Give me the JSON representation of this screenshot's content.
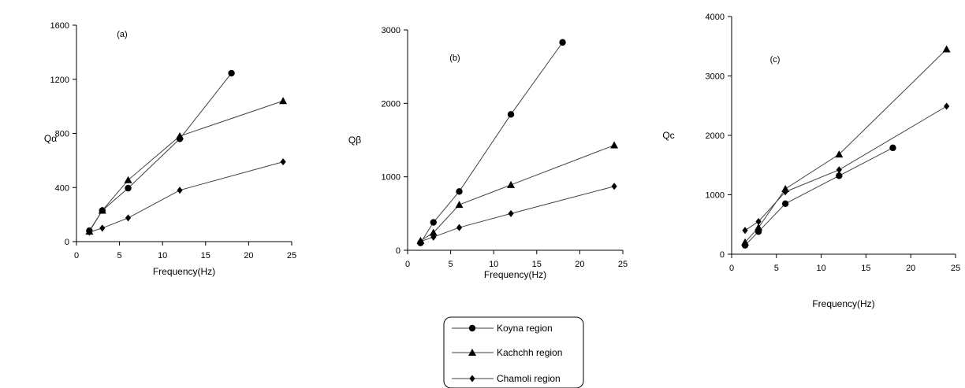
{
  "chart_data": [
    {
      "type": "line",
      "panel_label": "(a)",
      "xlabel": "Frequency(Hz)",
      "ylabel": "Qα",
      "xlim": [
        0,
        25
      ],
      "ylim": [
        0,
        1600
      ],
      "xticks": [
        0,
        5,
        10,
        15,
        20,
        25
      ],
      "yticks": [
        0,
        400,
        800,
        1200,
        1600
      ],
      "series": [
        {
          "name": "Koyna region",
          "marker": "circle",
          "x": [
            1.5,
            3,
            6,
            12,
            18
          ],
          "y": [
            80,
            230,
            395,
            760,
            1245
          ]
        },
        {
          "name": "Kachchh region",
          "marker": "triangle",
          "x": [
            1.5,
            3,
            6,
            12,
            24
          ],
          "y": [
            75,
            230,
            455,
            780,
            1040
          ]
        },
        {
          "name": "Chamoli region",
          "marker": "diamond",
          "x": [
            1.5,
            3,
            6,
            12,
            24
          ],
          "y": [
            70,
            100,
            175,
            380,
            590
          ]
        }
      ]
    },
    {
      "type": "line",
      "panel_label": "(b)",
      "xlabel": "Frequency(Hz)",
      "ylabel": "Qβ",
      "xlim": [
        0,
        25
      ],
      "ylim": [
        0,
        3000
      ],
      "xticks": [
        0,
        5,
        10,
        15,
        20,
        25
      ],
      "yticks": [
        0,
        1000,
        2000,
        3000
      ],
      "series": [
        {
          "name": "Koyna region",
          "marker": "circle",
          "x": [
            1.5,
            3,
            6,
            12,
            18
          ],
          "y": [
            100,
            380,
            800,
            1850,
            2830
          ]
        },
        {
          "name": "Kachchh region",
          "marker": "triangle",
          "x": [
            1.5,
            3,
            6,
            12,
            24
          ],
          "y": [
            130,
            240,
            620,
            890,
            1430
          ]
        },
        {
          "name": "Chamoli region",
          "marker": "diamond",
          "x": [
            1.5,
            3,
            6,
            12,
            24
          ],
          "y": [
            120,
            180,
            310,
            500,
            870
          ]
        }
      ]
    },
    {
      "type": "line",
      "panel_label": "(c)",
      "xlabel": "Frequency(Hz)",
      "ylabel": "Qc",
      "xlim": [
        0,
        25
      ],
      "ylim": [
        0,
        4000
      ],
      "xticks": [
        0,
        5,
        10,
        15,
        20,
        25
      ],
      "yticks": [
        0,
        1000,
        2000,
        3000,
        4000
      ],
      "series": [
        {
          "name": "Koyna region",
          "marker": "circle",
          "x": [
            1.5,
            3,
            6,
            12,
            18
          ],
          "y": [
            150,
            380,
            850,
            1320,
            1790
          ]
        },
        {
          "name": "Kachchh region",
          "marker": "triangle",
          "x": [
            1.5,
            3,
            6,
            12,
            24
          ],
          "y": [
            200,
            450,
            1100,
            1680,
            3450
          ]
        },
        {
          "name": "Chamoli region",
          "marker": "diamond",
          "x": [
            1.5,
            3,
            6,
            12,
            24
          ],
          "y": [
            400,
            550,
            1050,
            1420,
            2490
          ]
        }
      ]
    }
  ],
  "legend": {
    "placement": "bottom-center",
    "entries": [
      {
        "label": "Koyna region",
        "marker": "circle"
      },
      {
        "label": "Kachchh region",
        "marker": "triangle"
      },
      {
        "label": "Chamoli region",
        "marker": "diamond"
      }
    ]
  },
  "colors": {
    "line": "#404040",
    "marker": "#000000",
    "axis": "#000000"
  }
}
